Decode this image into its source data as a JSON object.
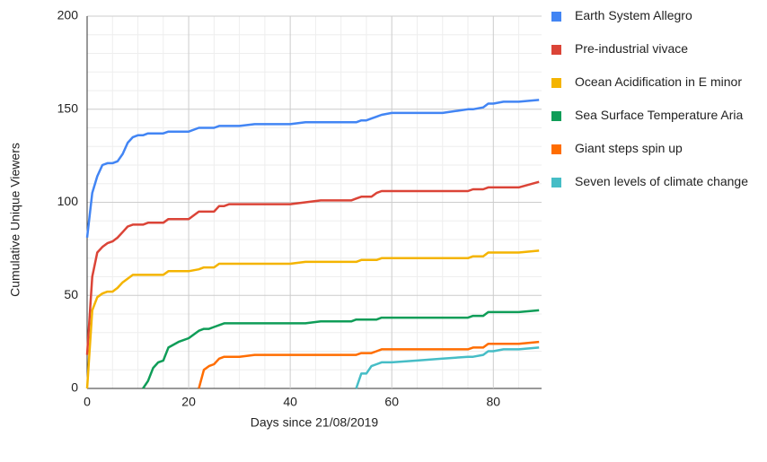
{
  "chart_data": {
    "type": "line",
    "xlabel": "Days since 21/08/2019",
    "ylabel": "Cumulative Unique Viewers",
    "x": [
      0,
      1,
      2,
      3,
      4,
      5,
      6,
      7,
      8,
      9,
      10,
      11,
      12,
      13,
      14,
      15,
      16,
      18,
      20,
      22,
      23,
      24,
      25,
      26,
      27,
      28,
      30,
      33,
      36,
      40,
      43,
      46,
      50,
      52,
      53,
      54,
      55,
      56,
      57,
      58,
      60,
      65,
      70,
      75,
      76,
      78,
      79,
      80,
      82,
      85,
      89
    ],
    "series": [
      {
        "name": "Earth System Allegro",
        "color": "#4285f4",
        "values": [
          81,
          105,
          114,
          120,
          121,
          121,
          122,
          126,
          132,
          135,
          136,
          136,
          137,
          137,
          137,
          137,
          138,
          138,
          138,
          140,
          140,
          140,
          140,
          141,
          141,
          141,
          141,
          142,
          142,
          142,
          143,
          143,
          143,
          143,
          143,
          144,
          144,
          145,
          146,
          147,
          148,
          148,
          148,
          150,
          150,
          151,
          153,
          153,
          154,
          154,
          155
        ]
      },
      {
        "name": "Pre-industrial vivace",
        "color": "#db4437",
        "values": [
          18,
          60,
          73,
          76,
          78,
          79,
          81,
          84,
          87,
          88,
          88,
          88,
          89,
          89,
          89,
          89,
          91,
          91,
          91,
          95,
          95,
          95,
          95,
          98,
          98,
          99,
          99,
          99,
          99,
          99,
          100,
          101,
          101,
          101,
          102,
          103,
          103,
          103,
          105,
          106,
          106,
          106,
          106,
          106,
          107,
          107,
          108,
          108,
          108,
          108,
          111
        ]
      },
      {
        "name": "Ocean Acidification in E minor",
        "color": "#f4b400",
        "values": [
          0,
          42,
          49,
          51,
          52,
          52,
          54,
          57,
          59,
          61,
          61,
          61,
          61,
          61,
          61,
          61,
          63,
          63,
          63,
          64,
          65,
          65,
          65,
          67,
          67,
          67,
          67,
          67,
          67,
          67,
          68,
          68,
          68,
          68,
          68,
          69,
          69,
          69,
          69,
          70,
          70,
          70,
          70,
          70,
          71,
          71,
          73,
          73,
          73,
          73,
          74
        ]
      },
      {
        "name": "Sea Surface Temperature Aria",
        "color": "#0f9d58",
        "values": [
          null,
          null,
          null,
          null,
          null,
          null,
          null,
          null,
          null,
          null,
          null,
          0,
          4,
          11,
          14,
          15,
          22,
          25,
          27,
          31,
          32,
          32,
          33,
          34,
          35,
          35,
          35,
          35,
          35,
          35,
          35,
          36,
          36,
          36,
          37,
          37,
          37,
          37,
          37,
          38,
          38,
          38,
          38,
          38,
          39,
          39,
          41,
          41,
          41,
          41,
          42
        ]
      },
      {
        "name": "Giant steps spin up",
        "color": "#ff6d00",
        "values": [
          null,
          null,
          null,
          null,
          null,
          null,
          null,
          null,
          null,
          null,
          null,
          null,
          null,
          null,
          null,
          null,
          null,
          null,
          null,
          0,
          10,
          12,
          13,
          16,
          17,
          17,
          17,
          18,
          18,
          18,
          18,
          18,
          18,
          18,
          18,
          19,
          19,
          19,
          20,
          21,
          21,
          21,
          21,
          21,
          22,
          22,
          24,
          24,
          24,
          24,
          25
        ]
      },
      {
        "name": "Seven levels of climate change",
        "color": "#46bdc6",
        "values": [
          null,
          null,
          null,
          null,
          null,
          null,
          null,
          null,
          null,
          null,
          null,
          null,
          null,
          null,
          null,
          null,
          null,
          null,
          null,
          null,
          null,
          null,
          null,
          null,
          null,
          null,
          null,
          null,
          null,
          null,
          null,
          null,
          null,
          null,
          0,
          8,
          8,
          12,
          13,
          14,
          14,
          15,
          16,
          17,
          17,
          18,
          20,
          20,
          21,
          21,
          22
        ]
      }
    ],
    "xlim": [
      0,
      89.5
    ],
    "xticks": [
      0,
      20,
      40,
      60,
      80
    ],
    "ylim": [
      0,
      200
    ],
    "yticks": [
      0,
      50,
      100,
      150,
      200
    ],
    "grid": true,
    "legend": "right"
  }
}
